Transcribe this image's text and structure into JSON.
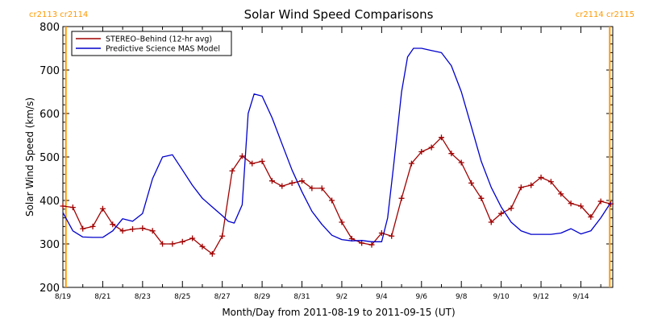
{
  "chart_data": {
    "type": "line",
    "title": "Solar Wind Speed Comparisons",
    "xlabel": "Month/Day from 2011-08-19 to 2011-09-15 (UT)",
    "ylabel": "Solar Wind Speed (km/s)",
    "xlim": [
      0,
      27.6
    ],
    "ylim": [
      200,
      800
    ],
    "yticks": [
      200,
      300,
      400,
      500,
      600,
      700,
      800
    ],
    "xticks": [
      {
        "x": 0,
        "label": "8/19"
      },
      {
        "x": 2,
        "label": "8/21"
      },
      {
        "x": 4,
        "label": "8/23"
      },
      {
        "x": 6,
        "label": "8/25"
      },
      {
        "x": 8,
        "label": "8/27"
      },
      {
        "x": 10,
        "label": "8/29"
      },
      {
        "x": 12,
        "label": "8/31"
      },
      {
        "x": 14,
        "label": "9/2"
      },
      {
        "x": 16,
        "label": "9/4"
      },
      {
        "x": 18,
        "label": "9/6"
      },
      {
        "x": 20,
        "label": "9/8"
      },
      {
        "x": 22,
        "label": "9/10"
      },
      {
        "x": 24,
        "label": "9/12"
      },
      {
        "x": 26,
        "label": "9/14"
      }
    ],
    "legend": {
      "placement": "top-left"
    },
    "rotation_markers": [
      {
        "x": 0.15,
        "label": "cr2113 cr2114",
        "side": "left"
      },
      {
        "x": 27.45,
        "label": "cr2114 cr2115",
        "side": "right"
      }
    ],
    "series": [
      {
        "name": "STEREO–Behind (12-hr avg)",
        "color": "#a00000",
        "markers": true,
        "x": [
          0,
          0.5,
          1,
          1.5,
          2,
          2.5,
          3,
          3.5,
          4,
          4.5,
          5,
          5.5,
          6,
          6.5,
          7,
          7.5,
          8,
          8.5,
          9,
          9.5,
          10,
          10.5,
          11,
          11.5,
          12,
          12.5,
          13,
          13.5,
          14,
          14.5,
          15,
          15.5,
          16,
          16.5,
          17,
          17.5,
          18,
          18.5,
          19,
          19.5,
          20,
          20.5,
          21,
          21.5,
          22,
          22.5,
          23,
          23.5,
          24,
          24.5,
          25,
          25.5,
          26,
          26.5,
          27,
          27.5
        ],
        "y": [
          387,
          384,
          335,
          340,
          381,
          345,
          330,
          334,
          336,
          330,
          300,
          300,
          305,
          313,
          294,
          277,
          318,
          468,
          502,
          485,
          490,
          445,
          433,
          440,
          445,
          428,
          428,
          400,
          350,
          312,
          302,
          298,
          325,
          318,
          405,
          485,
          512,
          522,
          545,
          508,
          487,
          440,
          405,
          350,
          370,
          382,
          430,
          435,
          453,
          443,
          415,
          393,
          387,
          362,
          398,
          392
        ]
      },
      {
        "name": "Predictive Science MAS Model",
        "color": "#0000cc",
        "markers": false,
        "x": [
          0,
          0.5,
          1,
          1.5,
          2,
          2.5,
          3,
          3.5,
          4,
          4.5,
          5,
          5.5,
          6,
          6.5,
          7,
          7.5,
          8,
          8.3,
          8.6,
          9,
          9.3,
          9.6,
          10,
          10.5,
          11,
          11.5,
          12,
          12.5,
          13,
          13.5,
          14,
          14.5,
          15,
          15.5,
          16,
          16.3,
          16.6,
          17,
          17.3,
          17.6,
          18,
          18.5,
          19,
          19.5,
          20,
          20.5,
          21,
          21.5,
          22,
          22.5,
          23,
          23.5,
          24,
          24.5,
          25,
          25.5,
          26,
          26.5,
          27,
          27.5
        ],
        "y": [
          372,
          330,
          316,
          315,
          315,
          330,
          358,
          352,
          370,
          450,
          500,
          505,
          470,
          435,
          405,
          385,
          365,
          352,
          348,
          390,
          600,
          645,
          640,
          590,
          530,
          470,
          420,
          375,
          345,
          320,
          310,
          307,
          308,
          305,
          305,
          360,
          480,
          650,
          730,
          750,
          750,
          745,
          740,
          710,
          650,
          570,
          490,
          430,
          385,
          350,
          330,
          322,
          322,
          322,
          325,
          335,
          323,
          330,
          360,
          395
        ]
      }
    ]
  }
}
